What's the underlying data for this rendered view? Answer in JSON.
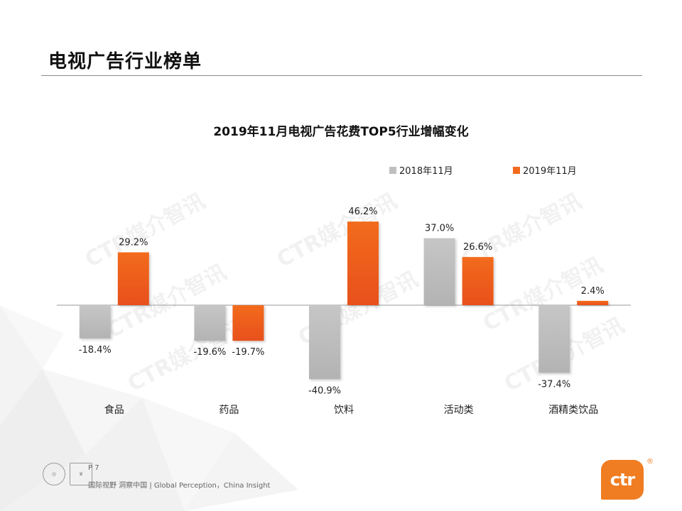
{
  "slide": {
    "title": "电视广告行业榜单",
    "page_number": "P 7",
    "footer": "国际视野  洞察中国 |  Global Perception，China Insight",
    "logo_text": "ctr",
    "logo_mark": "®",
    "watermark_text": "CTR媒介智讯"
  },
  "colors": {
    "series_2018": "#bfbfbf",
    "series_2019": "#f26b1d",
    "logo": "#f07d22",
    "rule": "#8a8a8a"
  },
  "chart_data": {
    "type": "bar",
    "title": "2019年11月电视广告花费TOP5行业增幅变化",
    "categories": [
      "食品",
      "药品",
      "饮料",
      "活动类",
      "酒精类饮品"
    ],
    "series": [
      {
        "name": "2018年11月",
        "values": [
          -18.4,
          -19.6,
          -40.9,
          37.0,
          -37.4
        ],
        "labels": [
          "-18.4%",
          "-19.6%",
          "-40.9%",
          "37.0%",
          "-37.4%"
        ]
      },
      {
        "name": "2019年11月",
        "values": [
          29.2,
          -19.7,
          46.2,
          26.6,
          2.4
        ],
        "labels": [
          "29.2%",
          "-19.7%",
          "46.2%",
          "26.6%",
          "2.4%"
        ]
      }
    ],
    "unit": "%",
    "ylim": [
      -45,
      50
    ],
    "legend_position": "top-right",
    "grid": false,
    "xlabel": "",
    "ylabel": ""
  }
}
